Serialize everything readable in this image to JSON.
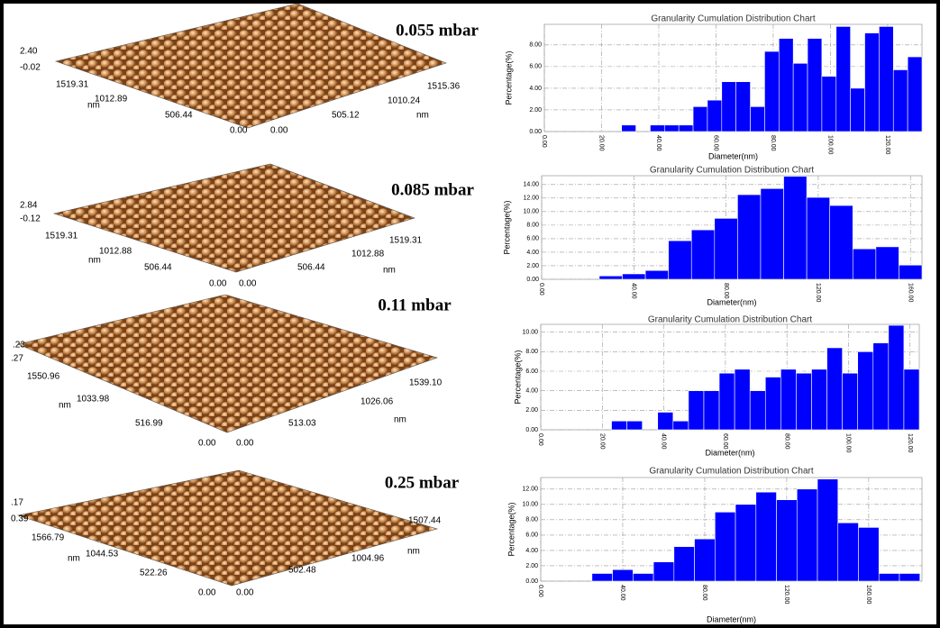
{
  "afm_panels": [
    {
      "pressure": "0.055 mbar",
      "z_ticks": [
        "2.40",
        "-0.02"
      ],
      "y_ticks": [
        "1519.31",
        "1012.89",
        "506.44",
        "0.00"
      ],
      "x_ticks": [
        "0.00",
        "505.12",
        "1010.24",
        "1515.36"
      ],
      "unit": "nm"
    },
    {
      "pressure": "0.085 mbar",
      "z_ticks": [
        "2.84",
        "-0.12"
      ],
      "y_ticks": [
        "1519.31",
        "1012.88",
        "506.44",
        "0.00"
      ],
      "x_ticks": [
        "0.00",
        "506.44",
        "1012.88",
        "1519.31"
      ],
      "unit": "nm"
    },
    {
      "pressure": "0.11 mbar",
      "z_ticks": [
        ".23",
        ".27"
      ],
      "y_ticks": [
        "1550.96",
        "1033.98",
        "516.99",
        "0.00"
      ],
      "x_ticks": [
        "0.00",
        "513.03",
        "1026.06",
        "1539.10"
      ],
      "unit": "nm"
    },
    {
      "pressure": "0.25 mbar",
      "z_ticks": [
        ".17",
        "0.39"
      ],
      "y_ticks": [
        "1566.79",
        "1044.53",
        "522.26",
        "0.00"
      ],
      "x_ticks": [
        "0.00",
        "502.48",
        "1004.96",
        "1507.44"
      ],
      "unit": "nm"
    }
  ],
  "chart_data": [
    {
      "type": "histogram",
      "title": "Granularity Cumulation Distribution  Chart",
      "x_label": "Diameter(nm)",
      "y_label": "Percentage(%)",
      "color": "#0000ff",
      "grid": true,
      "bins": [
        27,
        32,
        37,
        42,
        47,
        52,
        57,
        62,
        67,
        72,
        77,
        82,
        87,
        92,
        97,
        102,
        107,
        112,
        117,
        122,
        127,
        132
      ],
      "values": [
        0.6,
        0,
        0.6,
        0.6,
        0.6,
        2.3,
        2.9,
        4.6,
        4.6,
        2.3,
        7.4,
        8.6,
        6.3,
        8.6,
        5.1,
        9.7,
        4.0,
        9.1,
        9.7,
        5.7,
        6.9
      ],
      "xlim": [
        0,
        132
      ],
      "ylim": [
        0,
        9.9
      ],
      "xticks": [
        {
          "value": 0,
          "label": "0.00"
        },
        {
          "value": 20,
          "label": "20.00"
        },
        {
          "value": 40,
          "label": "40.00"
        },
        {
          "value": 60,
          "label": "60.00"
        },
        {
          "value": 80,
          "label": "80.00"
        },
        {
          "value": 100,
          "label": "100.00"
        },
        {
          "value": 120,
          "label": "120.00"
        }
      ],
      "yticks": [
        {
          "value": 0,
          "label": "0.00"
        },
        {
          "value": 2,
          "label": "2.00"
        },
        {
          "value": 4,
          "label": "4.00"
        },
        {
          "value": 6,
          "label": "6.00"
        },
        {
          "value": 8,
          "label": "8.00"
        }
      ]
    },
    {
      "type": "histogram",
      "title": "Granularity Cumulation Distribution  Chart",
      "x_label": "Diameter(nm)",
      "y_label": "Percentage(%)",
      "color": "#0000ff",
      "grid": true,
      "bins": [
        25,
        35,
        45,
        55,
        65,
        75,
        85,
        95,
        105,
        115,
        125,
        135,
        145,
        155,
        165
      ],
      "values": [
        0.5,
        0.8,
        1.3,
        5.7,
        7.3,
        9.0,
        12.5,
        13.4,
        15.2,
        12.1,
        10.9,
        4.5,
        4.8,
        2.1
      ],
      "xlim": [
        0,
        165
      ],
      "ylim": [
        0,
        15.3
      ],
      "xticks": [
        {
          "value": 0,
          "label": "0.00"
        },
        {
          "value": 40,
          "label": "40.00"
        },
        {
          "value": 80,
          "label": "80.00"
        },
        {
          "value": 120,
          "label": "120.00"
        },
        {
          "value": 160,
          "label": "160.00"
        }
      ],
      "yticks": [
        {
          "value": 0,
          "label": "0.00"
        },
        {
          "value": 2,
          "label": "2.00"
        },
        {
          "value": 4,
          "label": "4.00"
        },
        {
          "value": 6,
          "label": "6.00"
        },
        {
          "value": 8,
          "label": "8.00"
        },
        {
          "value": 10,
          "label": "10.00"
        },
        {
          "value": 12,
          "label": "12.00"
        },
        {
          "value": 14,
          "label": "14.00"
        }
      ]
    },
    {
      "type": "histogram",
      "title": "Granularity Cumulation Distribution  Chart",
      "x_label": "Diameter(nm)",
      "y_label": "Percentage(%)",
      "color": "#0000ff",
      "grid": true,
      "bins": [
        23,
        28,
        33,
        38,
        43,
        48,
        53,
        58,
        63,
        68,
        73,
        78,
        83,
        88,
        93,
        98,
        103,
        108,
        113,
        118,
        123
      ],
      "values": [
        0.9,
        0.9,
        0,
        1.8,
        0.9,
        4.0,
        4.0,
        5.8,
        6.2,
        4.0,
        5.4,
        6.2,
        5.8,
        6.2,
        8.4,
        5.8,
        8.0,
        8.9,
        10.7,
        6.2
      ],
      "xlim": [
        0,
        123
      ],
      "ylim": [
        0,
        10.8
      ],
      "xticks": [
        {
          "value": 0,
          "label": "0.00"
        },
        {
          "value": 20,
          "label": "20.00"
        },
        {
          "value": 40,
          "label": "40.00"
        },
        {
          "value": 60,
          "label": "60.00"
        },
        {
          "value": 80,
          "label": "80.00"
        },
        {
          "value": 100,
          "label": "100.00"
        },
        {
          "value": 120,
          "label": "120.00"
        }
      ],
      "yticks": [
        {
          "value": 0,
          "label": "0.00"
        },
        {
          "value": 2,
          "label": "2.00"
        },
        {
          "value": 4,
          "label": "4.00"
        },
        {
          "value": 6,
          "label": "6.00"
        },
        {
          "value": 8,
          "label": "8.00"
        },
        {
          "value": 10,
          "label": "10.00"
        }
      ]
    },
    {
      "type": "histogram",
      "title": "Granularity Cumulation Distribution  Chart",
      "x_label": "Diameter(nm)",
      "y_label": "Percentage(%)",
      "color": "#0000ff",
      "grid": true,
      "bins": [
        25,
        35,
        45,
        55,
        65,
        75,
        85,
        95,
        105,
        115,
        125,
        135,
        145,
        155,
        165,
        175,
        185
      ],
      "values": [
        1.0,
        1.5,
        1.0,
        2.5,
        4.5,
        5.5,
        9.0,
        10.0,
        11.6,
        10.6,
        12.0,
        13.3,
        7.6,
        7.0,
        1.0,
        1.0
      ],
      "xlim": [
        0,
        186
      ],
      "ylim": [
        0,
        13.5
      ],
      "xticks": [
        {
          "value": 0,
          "label": "0.00"
        },
        {
          "value": 40,
          "label": "40.00"
        },
        {
          "value": 80,
          "label": "80.00"
        },
        {
          "value": 120,
          "label": "120.00"
        },
        {
          "value": 160,
          "label": "160.00"
        }
      ],
      "yticks": [
        {
          "value": 0,
          "label": "0.00"
        },
        {
          "value": 2,
          "label": "2.00"
        },
        {
          "value": 4,
          "label": "4.00"
        },
        {
          "value": 6,
          "label": "6.00"
        },
        {
          "value": 8,
          "label": "8.00"
        },
        {
          "value": 10,
          "label": "10.00"
        },
        {
          "value": 12,
          "label": "12.00"
        }
      ]
    }
  ]
}
